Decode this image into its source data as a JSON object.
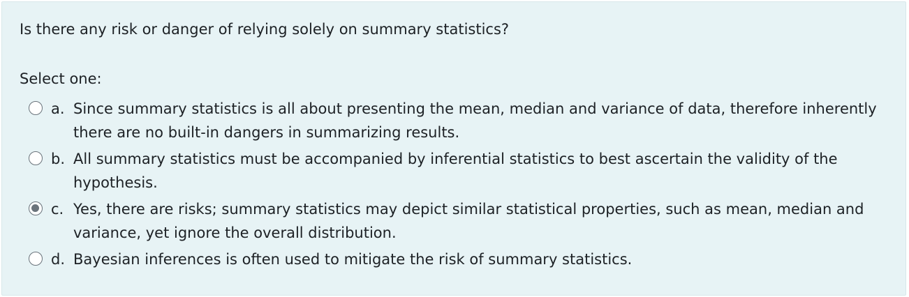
{
  "question": {
    "text": "Is there any risk or danger of relying solely on summary statistics?",
    "prompt": "Select one:"
  },
  "options": [
    {
      "letter": "a.",
      "text": "Since summary statistics is all about presenting the mean, median and variance of data, therefore inherently there are no built-in dangers in summarizing results.",
      "selected": false
    },
    {
      "letter": "b.",
      "text": "All summary statistics must be accompanied by inferential statistics to best ascertain the validity of the hypothesis.",
      "selected": false
    },
    {
      "letter": "c.",
      "text": "Yes, there are risks; summary statistics may depict similar statistical properties, such as mean, median and variance, yet ignore the overall distribution.",
      "selected": true
    },
    {
      "letter": "d.",
      "text": "Bayesian inferences is often used to mitigate the risk of summary statistics.",
      "selected": false
    }
  ],
  "colors": {
    "card_background": "#e7f3f5",
    "text": "#1d2125",
    "radio_border": "#6a737b"
  }
}
